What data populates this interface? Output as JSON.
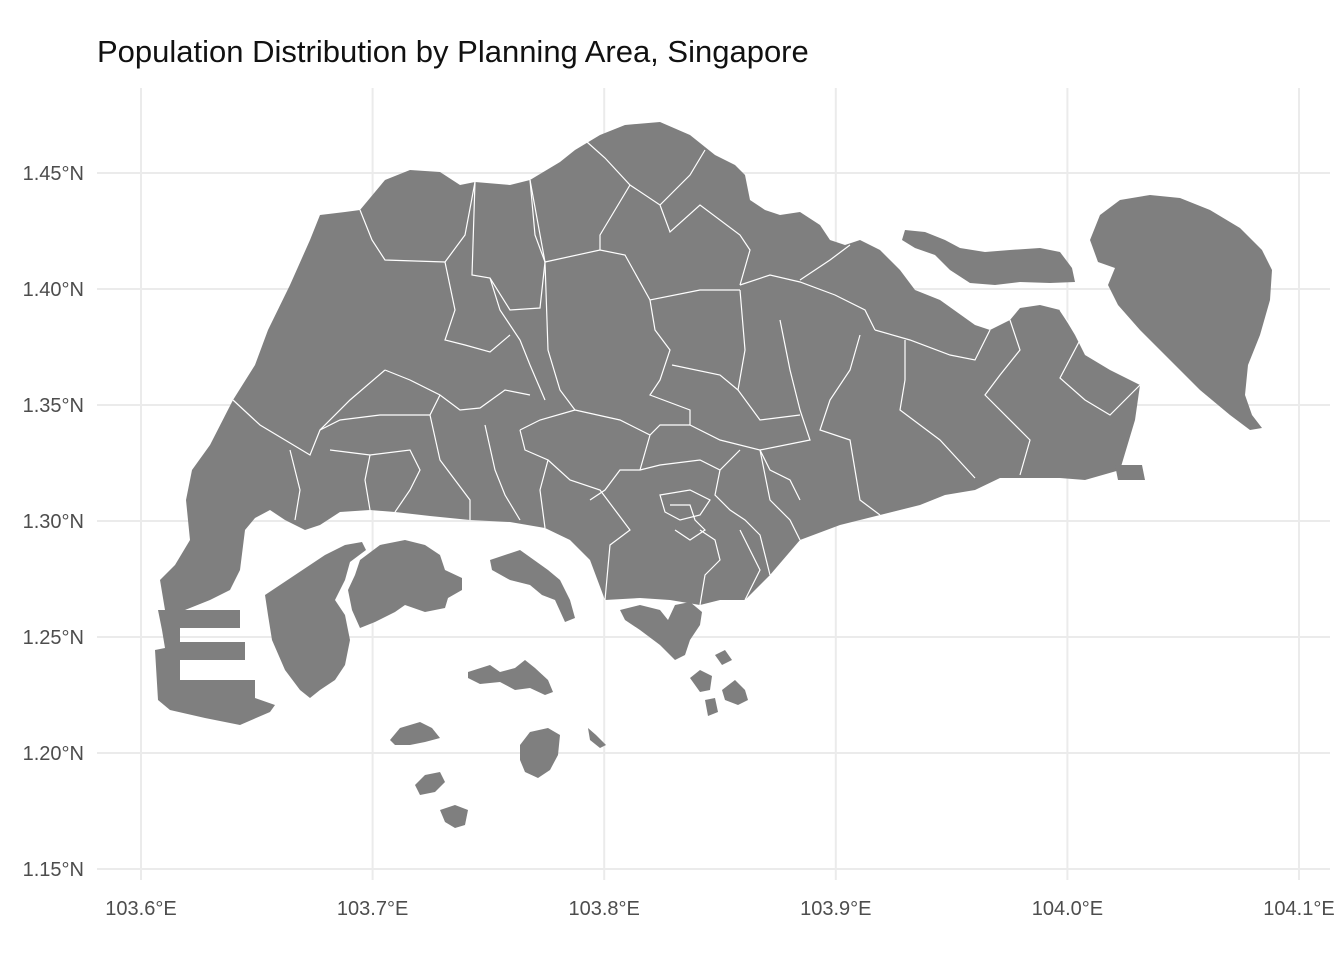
{
  "map": {
    "title": "Population Distribution by Planning Area, Singapore",
    "x_ticks": [
      "103.6°E",
      "103.7°E",
      "103.8°E",
      "103.9°E",
      "104.0°E",
      "104.1°E"
    ],
    "y_ticks": [
      "1.45°N",
      "1.40°N",
      "1.35°N",
      "1.30°N",
      "1.25°N",
      "1.20°N",
      "1.15°N"
    ],
    "lon_values": [
      103.6,
      103.7,
      103.8,
      103.9,
      104.0,
      104.1
    ],
    "lat_values": [
      1.45,
      1.4,
      1.35,
      1.3,
      1.25,
      1.2,
      1.15
    ],
    "fill_color": "#7f7f7f",
    "border_color": "#ffffff",
    "grid": true
  }
}
